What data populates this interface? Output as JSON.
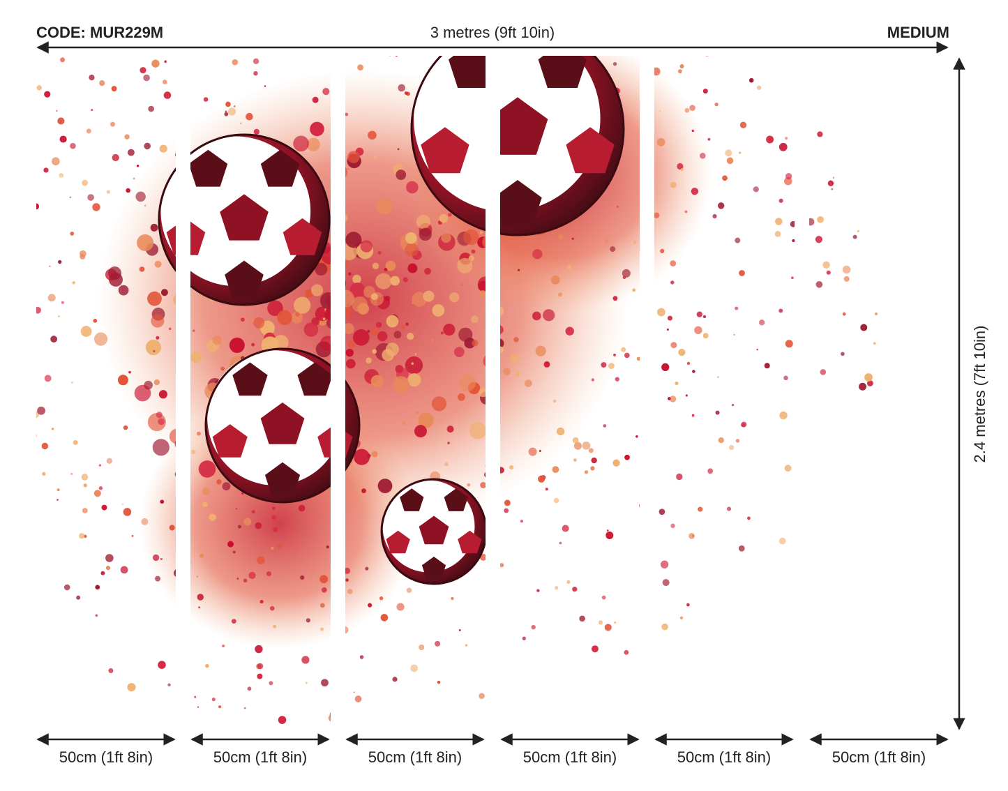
{
  "header": {
    "code": "CODE: MUR229M",
    "width_label": "3 metres (9ft 10in)",
    "size": "MEDIUM"
  },
  "height_label": "2.4 metres (7ft 10in)",
  "panels": [
    {
      "label": "50cm (1ft 8in)"
    },
    {
      "label": "50cm (1ft 8in)"
    },
    {
      "label": "50cm (1ft 8in)"
    },
    {
      "label": "50cm (1ft 8in)"
    },
    {
      "label": "50cm (1ft 8in)"
    },
    {
      "label": "50cm (1ft 8in)"
    }
  ],
  "artwork": {
    "subject": "soccer balls with red and orange paint splatter",
    "colors": [
      "#c8102e",
      "#e2553a",
      "#e98a5a",
      "#f0b070",
      "#9e1b32",
      "#d42a45"
    ]
  }
}
